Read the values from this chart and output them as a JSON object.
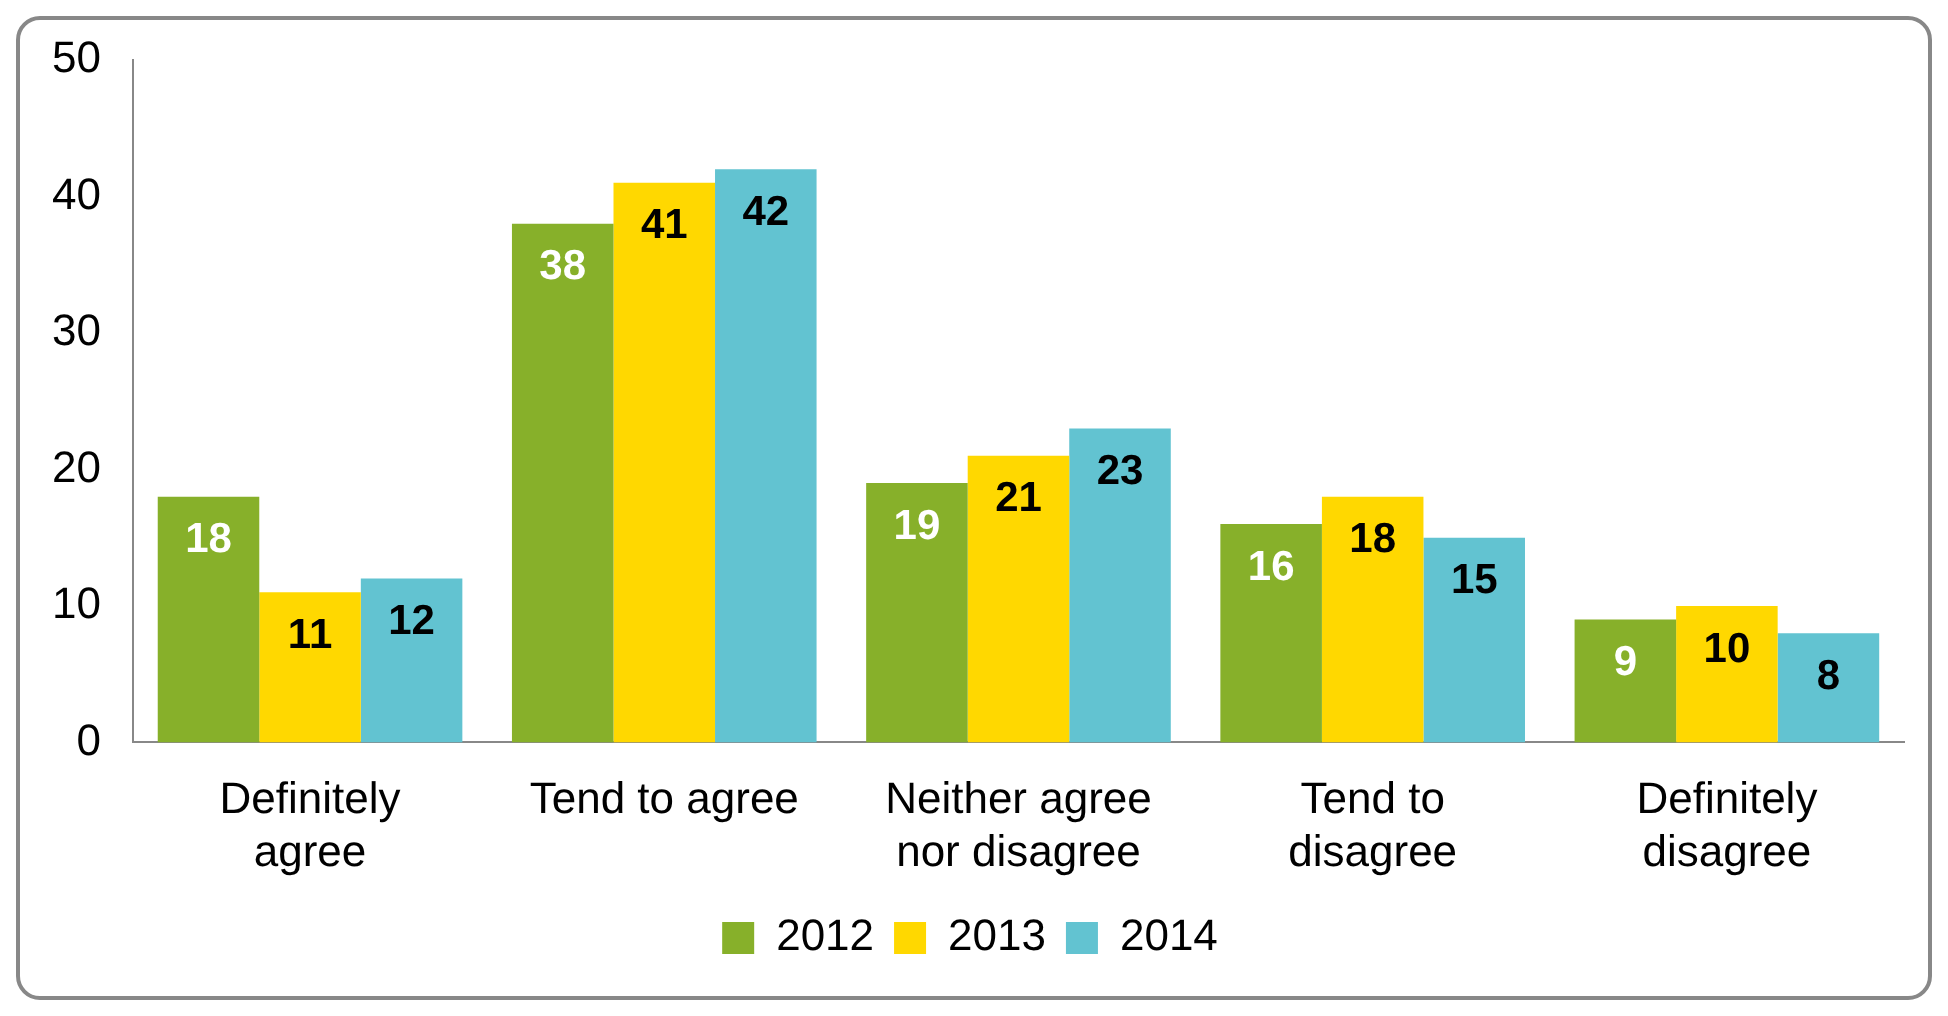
{
  "chart_data": {
    "type": "bar",
    "categories": [
      "Definitely agree",
      "Tend to agree",
      "Neither agree nor disagree",
      "Tend to disagree",
      "Definitely disagree"
    ],
    "series": [
      {
        "name": "2012",
        "color": "#87b02a",
        "values": [
          18,
          38,
          19,
          16,
          9
        ]
      },
      {
        "name": "2013",
        "color": "#ffd800",
        "values": [
          11,
          41,
          21,
          18,
          10
        ]
      },
      {
        "name": "2014",
        "color": "#62c3d1",
        "values": [
          12,
          42,
          23,
          15,
          8
        ]
      }
    ],
    "ylim": [
      0,
      50
    ],
    "yticks": [
      0,
      10,
      20,
      30,
      40,
      50
    ],
    "grid": false,
    "legend": "bottom",
    "data_labels": true
  }
}
